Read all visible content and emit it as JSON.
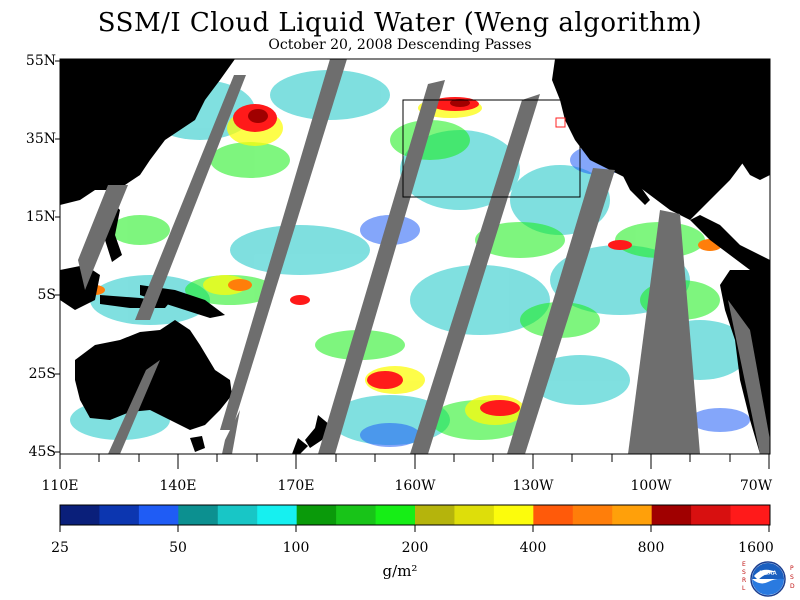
{
  "title": "SSM/I Cloud Liquid Water (Weng algorithm)",
  "subtitle": "October 20, 2008  Descending Passes",
  "lat_labels": [
    "55N",
    "35N",
    "15N",
    "5S",
    "25S",
    "45S"
  ],
  "lon_labels": [
    "110E",
    "140E",
    "170E",
    "160W",
    "130W",
    "100W",
    "70W"
  ],
  "colorbar": {
    "tick_labels": [
      "25",
      "50",
      "100",
      "200",
      "400",
      "800",
      "1600"
    ],
    "units": "g/m²",
    "colors": [
      "#0a1f7a",
      "#0c36b0",
      "#1f5cf5",
      "#0c9090",
      "#18c6c6",
      "#16f0f0",
      "#0a9a0a",
      "#18c418",
      "#16ee16",
      "#b5b40c",
      "#dede0a",
      "#fcfc0c",
      "#ff5a0a",
      "#ff7e0a",
      "#ffa00a",
      "#a00000",
      "#d81010",
      "#ff1a1a"
    ]
  },
  "logo": {
    "center_text": "NOAA",
    "left_letters": "ESRL",
    "right_letters": "PSD"
  },
  "colors": {
    "land": "#000000",
    "no_data_swath_gap": "#6e6e6e",
    "ocean_clear": "#ffffff"
  }
}
